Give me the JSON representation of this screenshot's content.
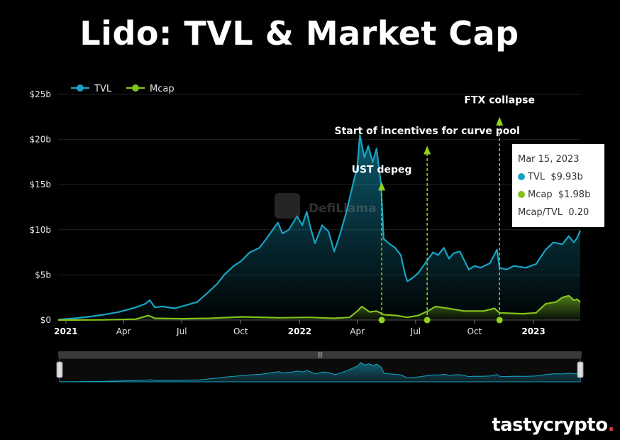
{
  "title": "Lido: TVL & Market Cap",
  "brand": {
    "text": "tastycrypto",
    "dot": "."
  },
  "watermark": "DefiLlama",
  "colors": {
    "tvl": "#17a3c4",
    "mcap": "#82c21a",
    "annotation": "#8fd21b"
  },
  "chart_data": {
    "type": "line",
    "title": "Lido: TVL & Market Cap",
    "xlabel": "",
    "ylabel": "",
    "ylim": [
      0,
      25
    ],
    "yunit": "billion USD",
    "yticks": [
      "$0",
      "$5b",
      "$10b",
      "$15b",
      "$20b",
      "$25b"
    ],
    "xticks": [
      {
        "label": "2021",
        "date": "2021-01-01",
        "bold": true
      },
      {
        "label": "Apr",
        "date": "2021-04-01",
        "bold": false
      },
      {
        "label": "Jul",
        "date": "2021-07-01",
        "bold": false
      },
      {
        "label": "Oct",
        "date": "2021-10-01",
        "bold": false
      },
      {
        "label": "2022",
        "date": "2022-01-01",
        "bold": true
      },
      {
        "label": "Apr",
        "date": "2022-04-01",
        "bold": false
      },
      {
        "label": "Jul",
        "date": "2022-07-01",
        "bold": false
      },
      {
        "label": "Oct",
        "date": "2022-10-01",
        "bold": false
      },
      {
        "label": "2023",
        "date": "2023-01-01",
        "bold": true
      }
    ],
    "xrange": [
      "2020-12-20",
      "2023-03-15"
    ],
    "legend": {
      "position": "top-left",
      "entries": [
        "TVL",
        "Mcap"
      ]
    },
    "grid": true,
    "series": [
      {
        "name": "TVL",
        "points": [
          [
            "2020-12-20",
            0.05
          ],
          [
            "2021-01-15",
            0.2
          ],
          [
            "2021-02-10",
            0.4
          ],
          [
            "2021-03-01",
            0.6
          ],
          [
            "2021-03-25",
            0.9
          ],
          [
            "2021-04-20",
            1.4
          ],
          [
            "2021-05-05",
            1.8
          ],
          [
            "2021-05-12",
            2.2
          ],
          [
            "2021-05-20",
            1.4
          ],
          [
            "2021-06-01",
            1.5
          ],
          [
            "2021-06-20",
            1.3
          ],
          [
            "2021-07-10",
            1.7
          ],
          [
            "2021-07-25",
            2.0
          ],
          [
            "2021-08-10",
            3.0
          ],
          [
            "2021-08-25",
            4.0
          ],
          [
            "2021-09-05",
            5.0
          ],
          [
            "2021-09-20",
            6.0
          ],
          [
            "2021-10-01",
            6.5
          ],
          [
            "2021-10-15",
            7.5
          ],
          [
            "2021-10-30",
            8.0
          ],
          [
            "2021-11-10",
            9.0
          ],
          [
            "2021-11-20",
            10.0
          ],
          [
            "2021-11-28",
            10.8
          ],
          [
            "2021-12-05",
            9.6
          ],
          [
            "2021-12-15",
            10.0
          ],
          [
            "2021-12-28",
            11.5
          ],
          [
            "2022-01-05",
            10.5
          ],
          [
            "2022-01-12",
            12.0
          ],
          [
            "2022-01-18",
            10.2
          ],
          [
            "2022-01-25",
            8.5
          ],
          [
            "2022-02-05",
            10.5
          ],
          [
            "2022-02-15",
            9.8
          ],
          [
            "2022-02-24",
            7.6
          ],
          [
            "2022-03-05",
            9.5
          ],
          [
            "2022-03-15",
            12.0
          ],
          [
            "2022-03-25",
            15.0
          ],
          [
            "2022-04-01",
            17.0
          ],
          [
            "2022-04-05",
            20.5
          ],
          [
            "2022-04-12",
            18.0
          ],
          [
            "2022-04-18",
            19.3
          ],
          [
            "2022-04-25",
            17.5
          ],
          [
            "2022-05-01",
            19.0
          ],
          [
            "2022-05-08",
            15.0
          ],
          [
            "2022-05-12",
            9.0
          ],
          [
            "2022-05-20",
            8.5
          ],
          [
            "2022-05-30",
            8.0
          ],
          [
            "2022-06-08",
            7.2
          ],
          [
            "2022-06-14",
            5.2
          ],
          [
            "2022-06-18",
            4.3
          ],
          [
            "2022-06-25",
            4.6
          ],
          [
            "2022-07-05",
            5.2
          ],
          [
            "2022-07-15",
            6.2
          ],
          [
            "2022-07-28",
            7.5
          ],
          [
            "2022-08-05",
            7.2
          ],
          [
            "2022-08-14",
            8.0
          ],
          [
            "2022-08-22",
            6.8
          ],
          [
            "2022-08-29",
            7.4
          ],
          [
            "2022-09-08",
            7.6
          ],
          [
            "2022-09-15",
            6.6
          ],
          [
            "2022-09-22",
            5.6
          ],
          [
            "2022-10-01",
            6.0
          ],
          [
            "2022-10-10",
            5.8
          ],
          [
            "2022-10-25",
            6.3
          ],
          [
            "2022-11-05",
            7.8
          ],
          [
            "2022-11-09",
            5.8
          ],
          [
            "2022-11-20",
            5.6
          ],
          [
            "2022-12-01",
            6.0
          ],
          [
            "2022-12-20",
            5.8
          ],
          [
            "2023-01-05",
            6.2
          ],
          [
            "2023-01-20",
            7.8
          ],
          [
            "2023-02-01",
            8.6
          ],
          [
            "2023-02-15",
            8.4
          ],
          [
            "2023-02-25",
            9.3
          ],
          [
            "2023-03-05",
            8.6
          ],
          [
            "2023-03-10",
            9.1
          ],
          [
            "2023-03-15",
            9.93
          ]
        ]
      },
      {
        "name": "Mcap",
        "points": [
          [
            "2020-12-20",
            0.0
          ],
          [
            "2021-03-01",
            0.02
          ],
          [
            "2021-04-20",
            0.1
          ],
          [
            "2021-05-10",
            0.5
          ],
          [
            "2021-05-20",
            0.2
          ],
          [
            "2021-07-01",
            0.15
          ],
          [
            "2021-08-15",
            0.2
          ],
          [
            "2021-10-01",
            0.35
          ],
          [
            "2021-12-01",
            0.25
          ],
          [
            "2022-01-15",
            0.3
          ],
          [
            "2022-02-24",
            0.2
          ],
          [
            "2022-03-20",
            0.3
          ],
          [
            "2022-04-01",
            1.0
          ],
          [
            "2022-04-08",
            1.5
          ],
          [
            "2022-04-20",
            0.9
          ],
          [
            "2022-05-01",
            1.0
          ],
          [
            "2022-05-12",
            0.6
          ],
          [
            "2022-06-01",
            0.5
          ],
          [
            "2022-06-18",
            0.3
          ],
          [
            "2022-07-05",
            0.5
          ],
          [
            "2022-07-20",
            1.0
          ],
          [
            "2022-08-01",
            1.5
          ],
          [
            "2022-08-20",
            1.3
          ],
          [
            "2022-09-15",
            1.0
          ],
          [
            "2022-10-15",
            1.0
          ],
          [
            "2022-11-01",
            1.3
          ],
          [
            "2022-11-09",
            0.8
          ],
          [
            "2022-12-15",
            0.7
          ],
          [
            "2023-01-05",
            0.8
          ],
          [
            "2023-01-20",
            1.8
          ],
          [
            "2023-02-05",
            2.0
          ],
          [
            "2023-02-15",
            2.5
          ],
          [
            "2023-02-25",
            2.7
          ],
          [
            "2023-03-05",
            2.2
          ],
          [
            "2023-03-10",
            2.3
          ],
          [
            "2023-03-15",
            1.98
          ]
        ]
      }
    ],
    "annotations": [
      {
        "label": "UST depeg",
        "date": "2022-05-09",
        "label_level": 16.3,
        "arrow_top": 15.3
      },
      {
        "label": "Start of incentives for curve pool",
        "date": "2022-07-19",
        "label_level": 20.6,
        "arrow_top": 19.3
      },
      {
        "label": "FTX collapse",
        "date": "2022-11-09",
        "label_level": 24.0,
        "arrow_top": 22.5
      }
    ],
    "tooltip": {
      "date": "Mar 15, 2023",
      "rows": [
        {
          "name": "TVL",
          "value": "$9.93b"
        },
        {
          "name": "Mcap",
          "value": "$1.98b"
        },
        {
          "name": "Mcap/TVL",
          "value": "0.20"
        }
      ]
    }
  }
}
